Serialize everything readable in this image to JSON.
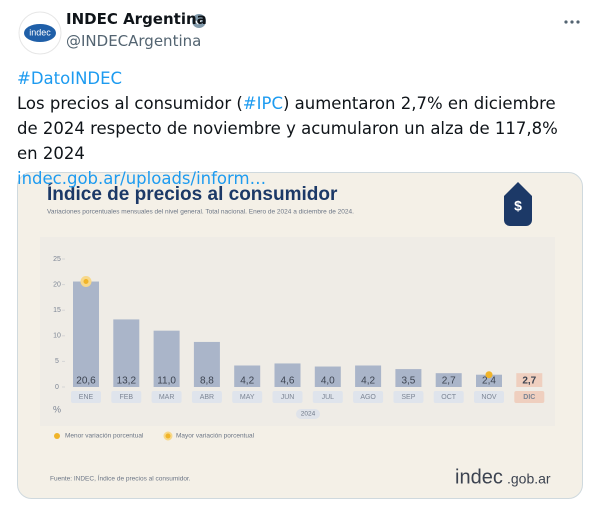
{
  "tweet": {
    "avatar_text": "indec",
    "name": "INDEC Argentina",
    "handle": "@INDECArgentina",
    "hashtag_line": "#DatoINDEC",
    "body_start": "Los precios al consumidor (",
    "body_tag": "#IPC",
    "body_end": ") aumentaron 2,7% en diciembre de 2024 respecto de noviembre y acumularon un alza de 117,8% en 2024",
    "link": "indec.gob.ar/uploads/inform…"
  },
  "chart_data": {
    "type": "bar",
    "title": "Índice de precios al consumidor",
    "subtitle": "Variaciones porcentuales mensuales del nivel general. Total nacional. Enero de 2024 a diciembre de 2024.",
    "categories": [
      "ENE",
      "FEB",
      "MAR",
      "ABR",
      "MAY",
      "JUN",
      "JUL",
      "AGO",
      "SEP",
      "OCT",
      "NOV",
      "DIC"
    ],
    "values": [
      20.6,
      13.2,
      11.0,
      8.8,
      4.2,
      4.6,
      4.0,
      4.2,
      3.5,
      2.7,
      2.4,
      2.7
    ],
    "value_labels": [
      "20,6",
      "13,2",
      "11,0",
      "8,8",
      "4,2",
      "4,6",
      "4,0",
      "4,2",
      "3,5",
      "2,7",
      "2,4",
      "2,7"
    ],
    "color": "#aab5c9",
    "highlight_color": "#efcfbf",
    "ylim": [
      0,
      25
    ],
    "yticks": [
      0,
      5,
      10,
      15,
      20,
      25
    ],
    "y_label": "%",
    "x_label": "2024",
    "legend": {
      "min": "Menor variación porcentual",
      "max": "Mayor variación porcentual"
    },
    "source": "Fuente: INDEC, Índice de precios al consumidor.",
    "logo": "indec",
    "logo_suffix": ".gob.ar"
  }
}
